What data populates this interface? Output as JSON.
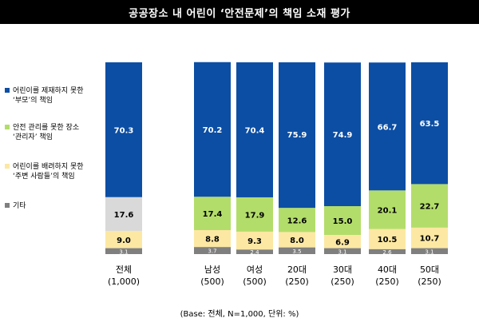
{
  "title": "공공장소 내 어린이 ‘안전문제’의 책임 소재 평가",
  "note": "(Base: 전체, N=1,000, 단위: %)",
  "legend": [
    {
      "line1": "어린이를 제재하지 못한",
      "line2": "‘부모’의 책임",
      "color": "#0c4ea4"
    },
    {
      "line1": "안전 관리를 못한 장소",
      "line2": "‘관리자’ 책임",
      "color": "#b3dd6a"
    },
    {
      "line1": "어린이를 배려하지 못한",
      "line2": "‘주변 사람들’의 책임",
      "color": "#fce8a3"
    },
    {
      "line1": "기타",
      "line2": "",
      "color": "#7f7f7f"
    }
  ],
  "chart_data": {
    "type": "bar",
    "stacked": true,
    "percent_scale": true,
    "categories": [
      {
        "line1": "전체",
        "line2": "(1,000)"
      },
      {
        "line1": "남성",
        "line2": "(500)"
      },
      {
        "line1": "여성",
        "line2": "(500)"
      },
      {
        "line1": "20대",
        "line2": "(250)"
      },
      {
        "line1": "30대",
        "line2": "(250)"
      },
      {
        "line1": "40대",
        "line2": "(250)"
      },
      {
        "line1": "50대",
        "line2": "(250)"
      }
    ],
    "series": [
      {
        "name": "기타",
        "color": "#7f7f7f",
        "values": [
          3.1,
          3.7,
          2.4,
          3.5,
          3.1,
          2.6,
          3.1
        ]
      },
      {
        "name": "어린이를 배려하지 못한 ‘주변 사람들’의 책임",
        "color": "#fce8a3",
        "values": [
          9.0,
          8.8,
          9.3,
          8.0,
          6.9,
          10.5,
          10.7
        ]
      },
      {
        "name": "안전 관리를 못한 장소 ‘관리자’ 책임",
        "color": "#b3dd6a",
        "values": [
          17.6,
          17.4,
          17.9,
          12.6,
          15.0,
          20.1,
          22.7
        ]
      },
      {
        "name": "어린이를 제재하지 못한 ‘부모’의 책임",
        "color": "#0c4ea4",
        "values": [
          70.3,
          70.2,
          70.4,
          75.9,
          74.9,
          66.7,
          63.5
        ]
      }
    ],
    "labels": [
      [
        "3.1",
        "3.7",
        "2.4",
        "3.5",
        "3.1",
        "2.6",
        "3.1"
      ],
      [
        "9.0",
        "8.8",
        "9.3",
        "8.0",
        "6.9",
        "10.5",
        "10.7"
      ],
      [
        "17.6",
        "17.4",
        "17.9",
        "12.6",
        "15.0",
        "20.1",
        "22.7"
      ],
      [
        "70.3",
        "70.2",
        "70.4",
        "75.9",
        "74.9",
        "66.7",
        "63.5"
      ]
    ],
    "total_overall_color": "#d9d9d9"
  }
}
